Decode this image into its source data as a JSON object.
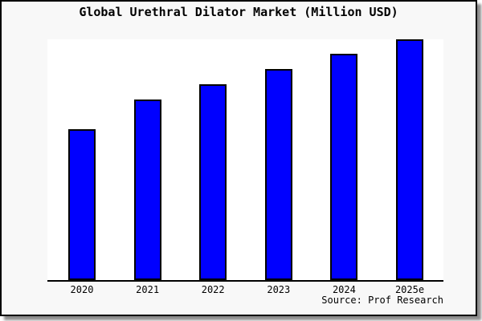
{
  "frame": {
    "background": "#f8f8f8",
    "border_color": "#000000",
    "plot_background": "#ffffff",
    "axis_color": "#000000"
  },
  "title": "Global Urethral Dilator Market (Million USD)",
  "source_label": "Source: Prof Research",
  "chart_data": {
    "type": "bar",
    "title": "Global Urethral Dilator Market (Million USD)",
    "categories": [
      "2020",
      "2021",
      "2022",
      "2023",
      "2024",
      "2025e"
    ],
    "values": [
      62.7,
      75.0,
      81.3,
      87.7,
      94.0,
      100.0
    ],
    "values_note": "y-axis has no tick labels; values are relative bar heights as percent of the tallest bar (2025e = 100)",
    "xlabel": "",
    "ylabel": "",
    "ylim_relative": [
      0,
      100
    ],
    "grid": false,
    "legend": false,
    "bar_color": "#0000ff",
    "bar_border_color": "#000000",
    "source_label": "Source: Prof Research"
  }
}
